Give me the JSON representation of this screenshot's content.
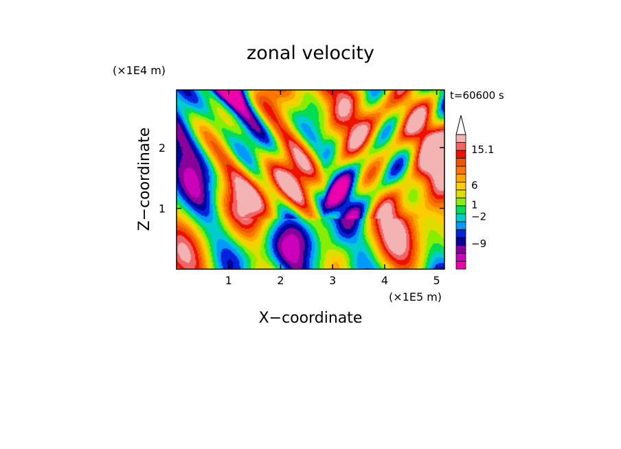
{
  "chart_data": {
    "type": "heatmap",
    "title": "zonal velocity",
    "xlabel": "X−coordinate",
    "ylabel": "Z−coordinate",
    "x_unit": "(×1E5 m)",
    "y_unit": "(×1E4 m)",
    "time_label": "t=60600 s",
    "xlim": [
      0,
      5.15
    ],
    "ylim": [
      0,
      2.95
    ],
    "x_ticks": [
      1,
      2,
      3,
      4,
      5
    ],
    "y_ticks": [
      1,
      2
    ],
    "colorbar": {
      "extend_max": true,
      "level_colors": [
        "#ee00aa",
        "#cc00bb",
        "#880099",
        "#000099",
        "#0022dd",
        "#0099ff",
        "#00cccc",
        "#00dd55",
        "#88ee00",
        "#dddd00",
        "#ffcc00",
        "#ffa500",
        "#ff7700",
        "#ee5500",
        "#ee1100",
        "#ee6666",
        "#f3b3b3",
        "#ffffff"
      ],
      "labels": [
        {
          "text": "15.1",
          "value": 15.1
        },
        {
          "text": "6",
          "value": 6
        },
        {
          "text": "1",
          "value": 1
        },
        {
          "text": "−2",
          "value": -2
        },
        {
          "text": "−9",
          "value": -9
        }
      ]
    }
  }
}
